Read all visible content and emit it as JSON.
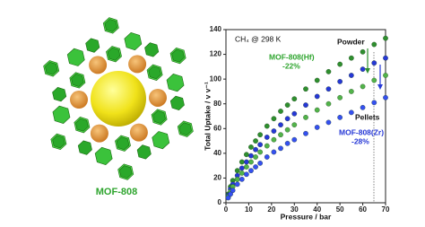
{
  "image_label": "MOF-808",
  "chart_data": {
    "type": "scatter",
    "title": "CH₄ @ 298 K",
    "x_label": "Pressure / bar",
    "y_label": "Total Uptake / v v⁻¹",
    "xlim": [
      0,
      70
    ],
    "xticks": [
      0,
      10,
      20,
      30,
      40,
      50,
      60,
      70
    ],
    "ylim": [
      0,
      140
    ],
    "yticks": [
      0,
      20,
      40,
      60,
      80,
      100,
      120,
      140
    ],
    "x": [
      1,
      2,
      3,
      5,
      7,
      9,
      11,
      13,
      15,
      18,
      21,
      24,
      27,
      30,
      35,
      40,
      45,
      50,
      55,
      60,
      65,
      70
    ],
    "series": [
      {
        "color": "#2f8f2f",
        "values": [
          7,
          13,
          18,
          26,
          33,
          39,
          45,
          50,
          55,
          62,
          68,
          74,
          79,
          84,
          92,
          99,
          106,
          112,
          117,
          122,
          128,
          133
        ]
      },
      {
        "color": "#2638d6",
        "values": [
          6,
          11,
          15,
          22,
          28,
          33,
          38,
          43,
          47,
          53,
          58,
          63,
          68,
          72,
          79,
          86,
          92,
          98,
          103,
          108,
          113,
          117
        ]
      },
      {
        "color": "#52b34a",
        "values": [
          5,
          9,
          13,
          19,
          24,
          29,
          33,
          37,
          41,
          46,
          51,
          55,
          59,
          63,
          69,
          75,
          80,
          85,
          90,
          94,
          99,
          103
        ]
      },
      {
        "color": "#3550f0",
        "values": [
          4,
          7,
          10,
          15,
          19,
          23,
          26,
          29,
          32,
          37,
          41,
          44,
          48,
          51,
          56,
          61,
          65,
          69,
          73,
          77,
          81,
          85
        ]
      }
    ],
    "annotations": [
      "Powder",
      "Pellets",
      "MOF-808(Hf)",
      "-22%",
      "MOF-808(Zr)",
      "-28%"
    ]
  }
}
